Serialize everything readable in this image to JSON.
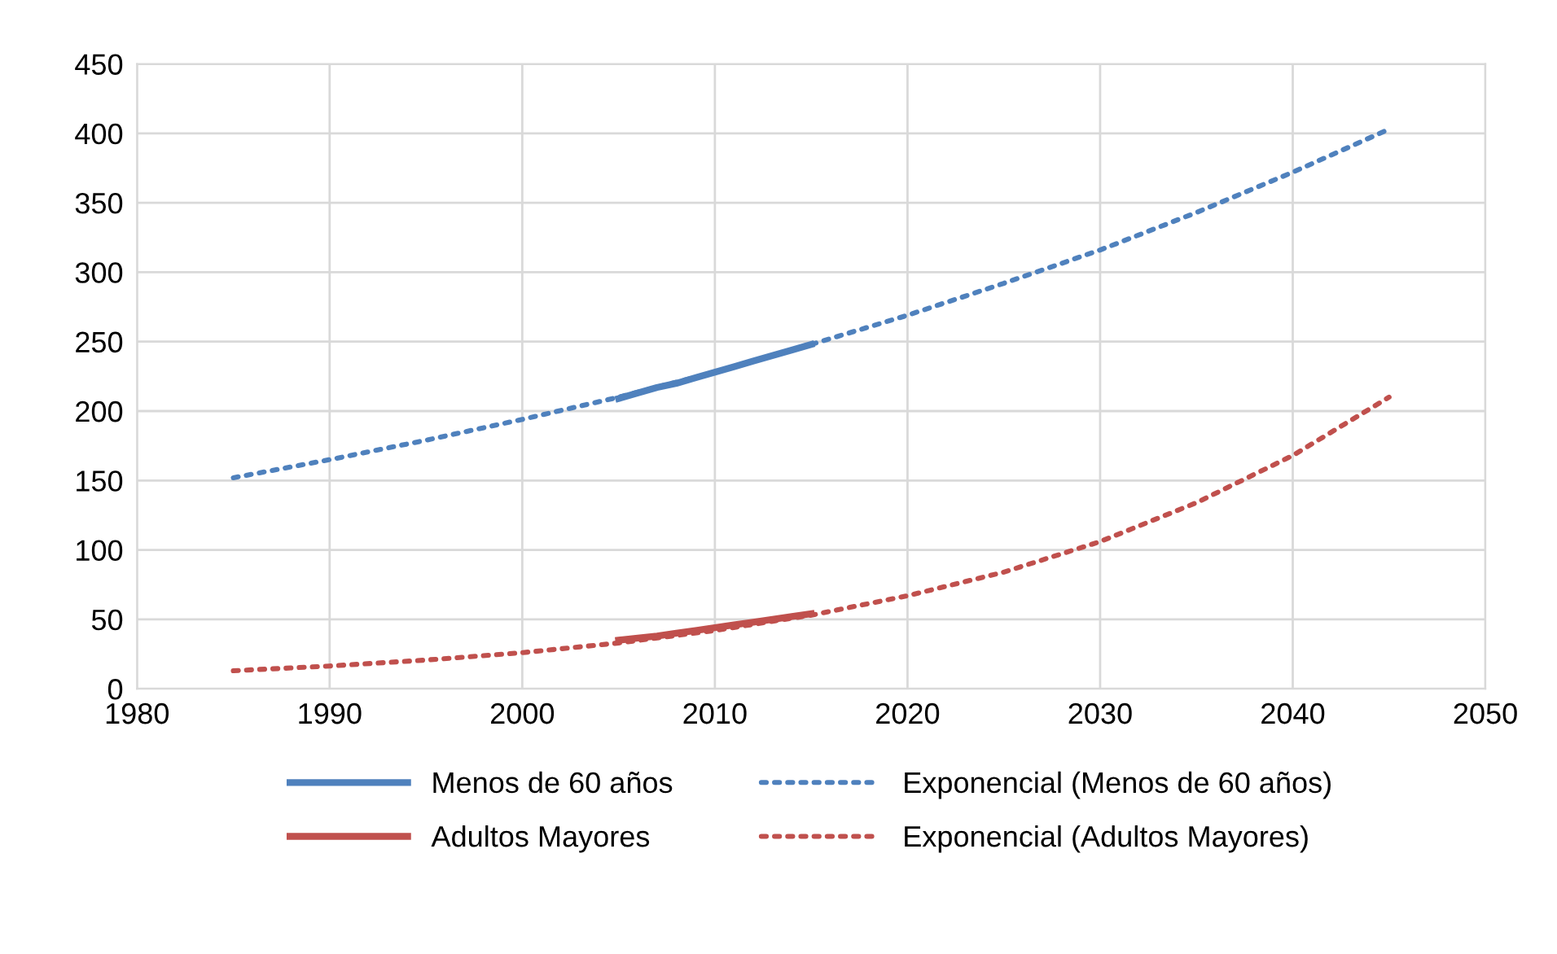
{
  "chart_data": {
    "type": "line",
    "xlim": [
      1980,
      2050
    ],
    "xticks": [
      1980,
      1990,
      2000,
      2010,
      2020,
      2030,
      2040,
      2050
    ],
    "ylim": [
      0,
      450
    ],
    "yticks": [
      0,
      50,
      100,
      150,
      200,
      250,
      300,
      350,
      400,
      450
    ],
    "grid": true,
    "legend": "bottom",
    "marker": "none",
    "series": [
      {
        "name": "Menos de 60 años",
        "color": "#4f81bd",
        "line_style": "solid",
        "x": [
          2005,
          2006,
          2007,
          2008,
          2009,
          2010,
          2011,
          2012,
          2013,
          2014,
          2015
        ],
        "values": [
          209,
          213,
          217,
          220,
          224,
          228,
          232,
          236,
          240,
          244,
          248
        ]
      },
      {
        "name": "Adultos Mayores",
        "color": "#c0504d",
        "line_style": "solid",
        "x": [
          2005,
          2006,
          2007,
          2008,
          2009,
          2010,
          2011,
          2012,
          2013,
          2014,
          2015
        ],
        "values": [
          35,
          36.5,
          38,
          40,
          42,
          44,
          46,
          48,
          50,
          52,
          54
        ]
      },
      {
        "name": "Exponencial (Menos de 60 años)",
        "color": "#4f81bd",
        "line_style": "dotted",
        "x": [
          1985,
          1990,
          1995,
          2000,
          2005,
          2010,
          2015,
          2020,
          2025,
          2030,
          2035,
          2040,
          2045
        ],
        "values": [
          152,
          165,
          179,
          194,
          210,
          228,
          248,
          269,
          292,
          316,
          343,
          372,
          403
        ]
      },
      {
        "name": "Exponencial (Adultos Mayores)",
        "color": "#c0504d",
        "line_style": "dotted",
        "x": [
          1985,
          1990,
          1995,
          2000,
          2005,
          2010,
          2015,
          2020,
          2025,
          2030,
          2035,
          2040,
          2045
        ],
        "values": [
          13,
          16.4,
          20.7,
          26,
          33,
          42,
          53,
          67,
          84,
          106,
          134,
          168,
          210
        ]
      }
    ]
  }
}
